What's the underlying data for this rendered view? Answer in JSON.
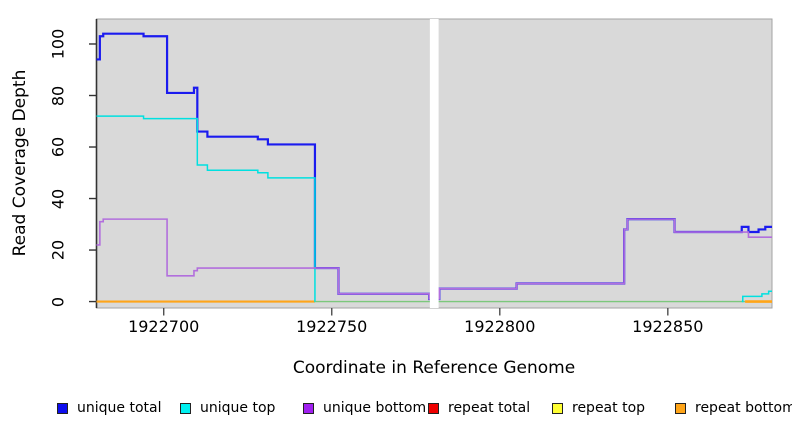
{
  "chart_data": {
    "type": "line",
    "subtype": "step-after",
    "title": "",
    "xlabel": "Coordinate in Reference Genome",
    "ylabel": "Read Coverage Depth",
    "x_ticks": [
      1922700,
      1922750,
      1922800,
      1922850
    ],
    "y_ticks": [
      0,
      20,
      40,
      60,
      80,
      100
    ],
    "x_domain": [
      1922680,
      1922881
    ],
    "y_domain": [
      -2.5,
      109.7
    ],
    "panel_bg": "#d9d9d9",
    "grid": "off",
    "legend_position": "bottom",
    "gap_region": {
      "x_start": 1922779.2,
      "x_end": 1922781.8,
      "color": "#ffffff",
      "meaning": "no-data gap"
    },
    "series": [
      {
        "id": "unique_total",
        "name": "unique total",
        "color": "#1b1bef",
        "points": [
          [
            1922680,
            94
          ],
          [
            1922681,
            103
          ],
          [
            1922682,
            104
          ],
          [
            1922694,
            103
          ],
          [
            1922701,
            81
          ],
          [
            1922709,
            83
          ],
          [
            1922710,
            66
          ],
          [
            1922713,
            64
          ],
          [
            1922728,
            63
          ],
          [
            1922731,
            61
          ],
          [
            1922745,
            13
          ],
          [
            1922752,
            3
          ],
          [
            1922779,
            1
          ],
          [
            1922782,
            5
          ],
          [
            1922805,
            7
          ],
          [
            1922837,
            28
          ],
          [
            1922838,
            32
          ],
          [
            1922852,
            27
          ],
          [
            1922872,
            29
          ],
          [
            1922874,
            27
          ],
          [
            1922877,
            28
          ],
          [
            1922879,
            29
          ]
        ]
      },
      {
        "id": "unique_top",
        "name": "unique top",
        "color": "#00e0e0",
        "points": [
          [
            1922680,
            72
          ],
          [
            1922694,
            71
          ],
          [
            1922710,
            53
          ],
          [
            1922713,
            51
          ],
          [
            1922728,
            50
          ],
          [
            1922731,
            48
          ],
          [
            1922745,
            0
          ],
          [
            1922872,
            2
          ],
          [
            1922878,
            3
          ],
          [
            1922880,
            4
          ]
        ]
      },
      {
        "id": "unique_bottom",
        "name": "unique bottom",
        "color": "#b26fdd",
        "points": [
          [
            1922680,
            22
          ],
          [
            1922681,
            31
          ],
          [
            1922682,
            32
          ],
          [
            1922701,
            10
          ],
          [
            1922709,
            12
          ],
          [
            1922710,
            13
          ],
          [
            1922752,
            3
          ],
          [
            1922779,
            1
          ],
          [
            1922782,
            5
          ],
          [
            1922805,
            7
          ],
          [
            1922837,
            28
          ],
          [
            1922838,
            32
          ],
          [
            1922852,
            27
          ],
          [
            1922874,
            25
          ]
        ]
      },
      {
        "id": "repeat_total",
        "name": "repeat total",
        "color": "#ee0000",
        "points": [
          [
            1922680,
            0
          ]
        ]
      },
      {
        "id": "repeat_top",
        "name": "repeat top",
        "color": "#ffff00",
        "points": [
          [
            1922680,
            0
          ]
        ]
      },
      {
        "id": "repeat_bottom",
        "name": "repeat bottom",
        "color": "#ffa519",
        "points": [
          [
            1922680,
            0
          ]
        ]
      }
    ],
    "paint_layers": [
      {
        "id": "zero-baseline-blend",
        "color": "#7cc87c",
        "width": 1.3,
        "x_end": 1922881,
        "points": [
          [
            1922745,
            0
          ]
        ]
      },
      {
        "id": "repeat-bottom-left",
        "color": "#ffa519",
        "width": 2.2,
        "x_end": 1922745,
        "points": [
          [
            1922680,
            0
          ]
        ]
      },
      {
        "id": "repeat-bottom-right",
        "color": "#ffa519",
        "width": 2.6,
        "x_end": 1922881,
        "points": [
          [
            1922873,
            0
          ]
        ]
      },
      {
        "id": "unique-total-line",
        "color": "#1b1bef",
        "width": 2.2,
        "x_end": 1922881,
        "points": [
          [
            1922680,
            94
          ],
          [
            1922681,
            103
          ],
          [
            1922682,
            104
          ],
          [
            1922694,
            103
          ],
          [
            1922701,
            81
          ],
          [
            1922709,
            83
          ],
          [
            1922710,
            66
          ],
          [
            1922713,
            64
          ],
          [
            1922728,
            63
          ],
          [
            1922731,
            61
          ],
          [
            1922745,
            13
          ],
          [
            1922752,
            3
          ],
          [
            1922779,
            1
          ],
          [
            1922782,
            5
          ],
          [
            1922805,
            7
          ],
          [
            1922837,
            28
          ],
          [
            1922838,
            32
          ],
          [
            1922852,
            27
          ],
          [
            1922872,
            29
          ],
          [
            1922874,
            27
          ],
          [
            1922877,
            28
          ],
          [
            1922879,
            29
          ]
        ]
      },
      {
        "id": "unique-top-line-left",
        "color": "#00e0e0",
        "width": 1.5,
        "x_end": 1922745.05,
        "points": [
          [
            1922680,
            72
          ],
          [
            1922694,
            71
          ],
          [
            1922710,
            53
          ],
          [
            1922713,
            51
          ],
          [
            1922728,
            50
          ],
          [
            1922731,
            48
          ],
          [
            1922745,
            0
          ]
        ]
      },
      {
        "id": "unique-top-line-right",
        "color": "#00e0e0",
        "width": 1.5,
        "x_end": 1922881,
        "points": [
          [
            1922872,
            0
          ],
          [
            1922872.3,
            2
          ],
          [
            1922878,
            3
          ],
          [
            1922880,
            4
          ]
        ]
      },
      {
        "id": "unique-bottom-line",
        "color": "#b26fdd",
        "width": 1.6,
        "x_end": 1922881,
        "points": [
          [
            1922680,
            22
          ],
          [
            1922681,
            31
          ],
          [
            1922682,
            32
          ],
          [
            1922701,
            10
          ],
          [
            1922709,
            12
          ],
          [
            1922710,
            13
          ],
          [
            1922752,
            3
          ],
          [
            1922779,
            1
          ],
          [
            1922782,
            5
          ],
          [
            1922805,
            7
          ],
          [
            1922837,
            28
          ],
          [
            1922838,
            32
          ],
          [
            1922852,
            27
          ],
          [
            1922874,
            25
          ]
        ]
      }
    ],
    "legend": [
      {
        "label": "unique total",
        "color": "#0d0dee"
      },
      {
        "label": "unique top",
        "color": "#00f0f0"
      },
      {
        "label": "unique bottom",
        "color": "#a020f0"
      },
      {
        "label": "repeat total",
        "color": "#ee0000"
      },
      {
        "label": "repeat top",
        "color": "#ffff33"
      },
      {
        "label": "repeat bottom",
        "color": "#ffa519"
      }
    ],
    "legend_swatch_border": "#222222"
  }
}
